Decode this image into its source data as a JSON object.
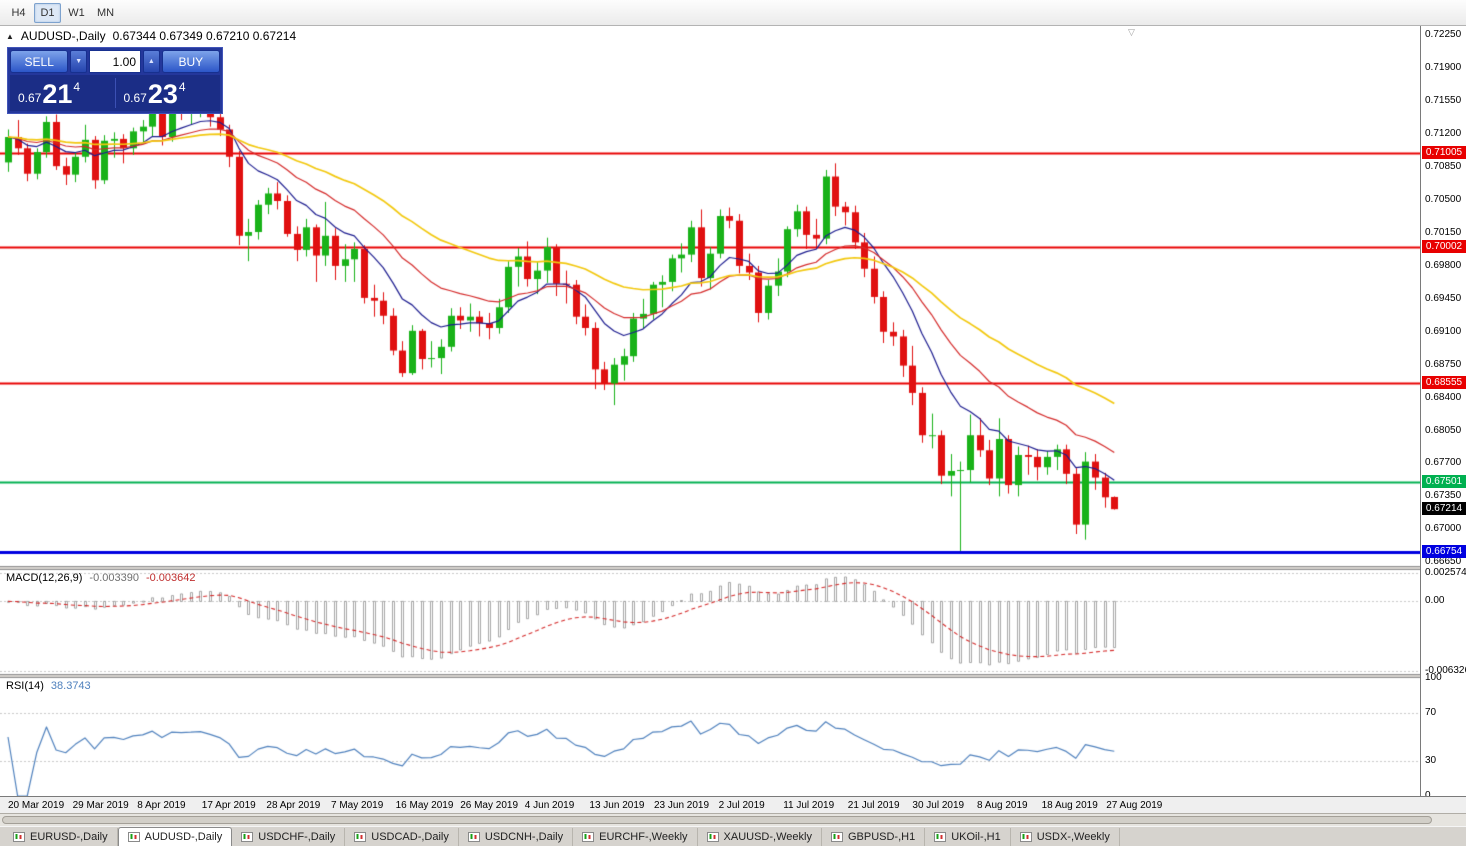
{
  "toolbar": {
    "timeframes": [
      {
        "label": "H4",
        "active": false
      },
      {
        "label": "D1",
        "active": true
      },
      {
        "label": "W1",
        "active": false
      },
      {
        "label": "MN",
        "active": false
      }
    ]
  },
  "chart": {
    "symbol_period": "AUDUSD-,Daily",
    "ohlc": "0.67344 0.67349 0.67210 0.67214"
  },
  "icons": {
    "one_click_toggle": "▲",
    "volume_down": "▼",
    "volume_up": "▲",
    "shift_marker": "▽"
  },
  "trade_panel": {
    "sell_label": "SELL",
    "buy_label": "BUY",
    "volume": "1.00",
    "sell_price": {
      "prefix": "0.67",
      "big": "21",
      "sup": "4"
    },
    "buy_price": {
      "prefix": "0.67",
      "big": "23",
      "sup": "4"
    }
  },
  "chart_data": {
    "type": "candlestick",
    "symbol": "AUDUSD",
    "period": "Daily",
    "ylim": [
      0.6661,
      0.7235
    ],
    "colors": {
      "up": "#19b219",
      "down": "#e01010",
      "ma_fast": "#1c1c8f",
      "ma_mid": "#d42a2a",
      "ma_slow": "#f2c80f",
      "macd_hist": "#909090",
      "macd_signal": "#d42a2a",
      "rsi": "#4f81bd",
      "grid": "#c8c8c8",
      "current_chip": "#000000"
    },
    "price_ticks": [
      {
        "v": 0.7225,
        "label": "0.72250"
      },
      {
        "v": 0.719,
        "label": "0.71900"
      },
      {
        "v": 0.7155,
        "label": "0.71550"
      },
      {
        "v": 0.712,
        "label": "0.71200"
      },
      {
        "v": 0.7085,
        "label": "0.70850"
      },
      {
        "v": 0.705,
        "label": "0.70500"
      },
      {
        "v": 0.7015,
        "label": "0.70150"
      },
      {
        "v": 0.698,
        "label": "0.69800"
      },
      {
        "v": 0.6945,
        "label": "0.69450"
      },
      {
        "v": 0.691,
        "label": "0.69100"
      },
      {
        "v": 0.6875,
        "label": "0.68750"
      },
      {
        "v": 0.684,
        "label": "0.68400"
      },
      {
        "v": 0.6805,
        "label": "0.68050"
      },
      {
        "v": 0.677,
        "label": "0.67700"
      },
      {
        "v": 0.6735,
        "label": "0.67350"
      },
      {
        "v": 0.67,
        "label": "0.67000"
      },
      {
        "v": 0.6665,
        "label": "0.66650"
      }
    ],
    "hlines": [
      {
        "price": 0.71005,
        "label": "0.71005",
        "color": "#e80000",
        "width": 2
      },
      {
        "price": 0.70002,
        "label": "0.70002",
        "color": "#e80000",
        "width": 2
      },
      {
        "price": 0.68555,
        "label": "0.68555",
        "color": "#e80000",
        "width": 2
      },
      {
        "price": 0.67501,
        "label": "0.67501",
        "color": "#00b050",
        "width": 2
      },
      {
        "price": 0.66754,
        "label": "0.66754",
        "color": "#0000e0",
        "width": 3
      }
    ],
    "current_price": {
      "value": 0.67214,
      "label": "0.67214"
    },
    "date_labels": [
      "20 Mar 2019",
      "29 Mar 2019",
      "8 Apr 2019",
      "17 Apr 2019",
      "28 Apr 2019",
      "7 May 2019",
      "16 May 2019",
      "26 May 2019",
      "4 Jun 2019",
      "13 Jun 2019",
      "23 Jun 2019",
      "2 Jul 2019",
      "11 Jul 2019",
      "21 Jul 2019",
      "30 Jul 2019",
      "8 Aug 2019",
      "18 Aug 2019",
      "27 Aug 2019"
    ],
    "moving_averages": [
      {
        "period": 10,
        "color": "#1c1c8f",
        "width": 1.2
      },
      {
        "period": 20,
        "color": "#d42a2a",
        "width": 1.2
      },
      {
        "period": 40,
        "color": "#f2c80f",
        "width": 1.7
      }
    ],
    "candles": [
      [
        0.709,
        0.7125,
        0.708,
        0.7117
      ],
      [
        0.7117,
        0.7135,
        0.7098,
        0.7105
      ],
      [
        0.7105,
        0.711,
        0.707,
        0.7078
      ],
      [
        0.7078,
        0.7105,
        0.7072,
        0.7101
      ],
      [
        0.7101,
        0.7139,
        0.7095,
        0.7133
      ],
      [
        0.7133,
        0.7141,
        0.7082,
        0.7086
      ],
      [
        0.7086,
        0.7095,
        0.7066,
        0.7077
      ],
      [
        0.7077,
        0.71,
        0.7069,
        0.7096
      ],
      [
        0.7096,
        0.713,
        0.709,
        0.7114
      ],
      [
        0.7114,
        0.7118,
        0.7062,
        0.7071
      ],
      [
        0.7071,
        0.7119,
        0.7067,
        0.7113
      ],
      [
        0.7113,
        0.7122,
        0.7095,
        0.7115
      ],
      [
        0.7115,
        0.712,
        0.7089,
        0.7105
      ],
      [
        0.7105,
        0.7127,
        0.7098,
        0.7123
      ],
      [
        0.7123,
        0.7135,
        0.711,
        0.7128
      ],
      [
        0.7128,
        0.7152,
        0.7118,
        0.7148
      ],
      [
        0.7148,
        0.7155,
        0.7108,
        0.7117
      ],
      [
        0.7117,
        0.715,
        0.7112,
        0.7146
      ],
      [
        0.7146,
        0.7152,
        0.7135,
        0.7144
      ],
      [
        0.7144,
        0.7155,
        0.713,
        0.7146
      ],
      [
        0.7146,
        0.7168,
        0.7138,
        0.7149
      ],
      [
        0.7149,
        0.7155,
        0.7128,
        0.7138
      ],
      [
        0.7138,
        0.7146,
        0.7118,
        0.7125
      ],
      [
        0.7125,
        0.713,
        0.7085,
        0.7096
      ],
      [
        0.7096,
        0.7102,
        0.7002,
        0.7012
      ],
      [
        0.7012,
        0.703,
        0.6985,
        0.7016
      ],
      [
        0.7016,
        0.705,
        0.7008,
        0.7045
      ],
      [
        0.7045,
        0.7063,
        0.7035,
        0.7057
      ],
      [
        0.7057,
        0.7069,
        0.704,
        0.7049
      ],
      [
        0.7049,
        0.7055,
        0.7011,
        0.7014
      ],
      [
        0.7014,
        0.7022,
        0.6985,
        0.6997
      ],
      [
        0.6997,
        0.703,
        0.699,
        0.7021
      ],
      [
        0.7021,
        0.7024,
        0.6963,
        0.6991
      ],
      [
        0.6991,
        0.7048,
        0.698,
        0.7012
      ],
      [
        0.7012,
        0.702,
        0.6965,
        0.698
      ],
      [
        0.698,
        0.7003,
        0.6963,
        0.6987
      ],
      [
        0.6987,
        0.7005,
        0.6963,
        0.6998
      ],
      [
        0.6998,
        0.7002,
        0.694,
        0.6946
      ],
      [
        0.6946,
        0.696,
        0.6926,
        0.6943
      ],
      [
        0.6943,
        0.6952,
        0.6918,
        0.6927
      ],
      [
        0.6927,
        0.6935,
        0.6885,
        0.689
      ],
      [
        0.689,
        0.69,
        0.6862,
        0.6866
      ],
      [
        0.6866,
        0.6917,
        0.6864,
        0.6911
      ],
      [
        0.6911,
        0.6913,
        0.687,
        0.6881
      ],
      [
        0.6881,
        0.69,
        0.6872,
        0.6882
      ],
      [
        0.6882,
        0.6902,
        0.6865,
        0.6894
      ],
      [
        0.6894,
        0.6935,
        0.6889,
        0.6927
      ],
      [
        0.6927,
        0.6936,
        0.6913,
        0.6922
      ],
      [
        0.6922,
        0.694,
        0.691,
        0.6926
      ],
      [
        0.6926,
        0.6932,
        0.6905,
        0.6919
      ],
      [
        0.6919,
        0.693,
        0.6902,
        0.6914
      ],
      [
        0.6914,
        0.6945,
        0.6908,
        0.6936
      ],
      [
        0.6936,
        0.6985,
        0.693,
        0.6979
      ],
      [
        0.6979,
        0.6999,
        0.6958,
        0.699
      ],
      [
        0.699,
        0.7006,
        0.6958,
        0.6966
      ],
      [
        0.6966,
        0.6985,
        0.695,
        0.6975
      ],
      [
        0.6975,
        0.701,
        0.6962,
        0.7
      ],
      [
        0.7,
        0.7003,
        0.6948,
        0.6961
      ],
      [
        0.6961,
        0.6975,
        0.694,
        0.696
      ],
      [
        0.696,
        0.6965,
        0.6918,
        0.6926
      ],
      [
        0.6926,
        0.6939,
        0.6906,
        0.6914
      ],
      [
        0.6914,
        0.692,
        0.6849,
        0.687
      ],
      [
        0.687,
        0.6878,
        0.6848,
        0.6855
      ],
      [
        0.6855,
        0.6882,
        0.6832,
        0.6875
      ],
      [
        0.6875,
        0.6892,
        0.6858,
        0.6884
      ],
      [
        0.6884,
        0.693,
        0.6878,
        0.6924
      ],
      [
        0.6924,
        0.6945,
        0.6913,
        0.6929
      ],
      [
        0.6929,
        0.6963,
        0.6923,
        0.696
      ],
      [
        0.696,
        0.697,
        0.6936,
        0.6963
      ],
      [
        0.6963,
        0.6992,
        0.6953,
        0.6988
      ],
      [
        0.6988,
        0.7004,
        0.6973,
        0.6992
      ],
      [
        0.6992,
        0.7028,
        0.6984,
        0.7021
      ],
      [
        0.7021,
        0.704,
        0.6958,
        0.6967
      ],
      [
        0.6967,
        0.7,
        0.6955,
        0.6993
      ],
      [
        0.6993,
        0.704,
        0.6988,
        0.7033
      ],
      [
        0.7033,
        0.7042,
        0.702,
        0.7028
      ],
      [
        0.7028,
        0.7035,
        0.6972,
        0.698
      ],
      [
        0.698,
        0.6993,
        0.6965,
        0.6973
      ],
      [
        0.6973,
        0.698,
        0.692,
        0.693
      ],
      [
        0.693,
        0.6965,
        0.6923,
        0.6959
      ],
      [
        0.6959,
        0.6988,
        0.6948,
        0.6974
      ],
      [
        0.6974,
        0.7022,
        0.6968,
        0.7019
      ],
      [
        0.7019,
        0.7045,
        0.7011,
        0.7038
      ],
      [
        0.7038,
        0.7043,
        0.6998,
        0.7013
      ],
      [
        0.7013,
        0.703,
        0.7,
        0.7009
      ],
      [
        0.7009,
        0.7082,
        0.7003,
        0.7075
      ],
      [
        0.7075,
        0.7089,
        0.7033,
        0.7043
      ],
      [
        0.7043,
        0.7048,
        0.7023,
        0.7037
      ],
      [
        0.7037,
        0.7044,
        0.6998,
        0.7005
      ],
      [
        0.7005,
        0.7015,
        0.6968,
        0.6977
      ],
      [
        0.6977,
        0.699,
        0.694,
        0.6947
      ],
      [
        0.6947,
        0.6953,
        0.6898,
        0.691
      ],
      [
        0.691,
        0.692,
        0.6895,
        0.6905
      ],
      [
        0.6905,
        0.6912,
        0.6862,
        0.6874
      ],
      [
        0.6874,
        0.6895,
        0.6832,
        0.6845
      ],
      [
        0.6845,
        0.6851,
        0.6792,
        0.68
      ],
      [
        0.68,
        0.6823,
        0.6786,
        0.68
      ],
      [
        0.68,
        0.6805,
        0.6748,
        0.6757
      ],
      [
        0.6757,
        0.678,
        0.6735,
        0.6762
      ],
      [
        0.6762,
        0.6772,
        0.6677,
        0.6763
      ],
      [
        0.6763,
        0.6822,
        0.675,
        0.68
      ],
      [
        0.68,
        0.6818,
        0.6777,
        0.6784
      ],
      [
        0.6784,
        0.6795,
        0.6747,
        0.6754
      ],
      [
        0.6754,
        0.6818,
        0.6735,
        0.6796
      ],
      [
        0.6796,
        0.68,
        0.6738,
        0.6747
      ],
      [
        0.6747,
        0.6788,
        0.6735,
        0.6779
      ],
      [
        0.6779,
        0.6789,
        0.6758,
        0.6777
      ],
      [
        0.6777,
        0.6785,
        0.6752,
        0.6766
      ],
      [
        0.6766,
        0.6783,
        0.6758,
        0.6777
      ],
      [
        0.6777,
        0.679,
        0.6763,
        0.6785
      ],
      [
        0.6785,
        0.679,
        0.6748,
        0.6759
      ],
      [
        0.6759,
        0.6765,
        0.6695,
        0.6705
      ],
      [
        0.6705,
        0.6782,
        0.6689,
        0.6772
      ],
      [
        0.6772,
        0.678,
        0.6742,
        0.6755
      ],
      [
        0.6755,
        0.676,
        0.6723,
        0.6734
      ],
      [
        0.67344,
        0.67349,
        0.6721,
        0.67214
      ]
    ],
    "macd": {
      "label": "MACD(12,26,9)",
      "main_value": "-0.003390",
      "signal_value": "-0.003642",
      "params": [
        12,
        26,
        9
      ],
      "ylim": [
        -0.0066,
        0.00285
      ],
      "ticks": [
        {
          "v": 0.002574,
          "label": "0.002574"
        },
        {
          "v": 0,
          "label": "0.00"
        },
        {
          "v": -0.006326,
          "label": "-0.006326"
        }
      ]
    },
    "rsi": {
      "label": "RSI(14)",
      "value_text": "38.3743",
      "period": 14,
      "ylim": [
        0,
        100
      ],
      "levels": [
        70,
        30
      ],
      "ticks": [
        {
          "v": 100,
          "label": "100"
        },
        {
          "v": 70,
          "label": "70"
        },
        {
          "v": 30,
          "label": "30"
        },
        {
          "v": 0,
          "label": "0"
        }
      ]
    }
  },
  "tabs": [
    {
      "label": "EURUSD-,Daily",
      "active": false
    },
    {
      "label": "AUDUSD-,Daily",
      "active": true
    },
    {
      "label": "USDCHF-,Daily",
      "active": false
    },
    {
      "label": "USDCAD-,Daily",
      "active": false
    },
    {
      "label": "USDCNH-,Daily",
      "active": false
    },
    {
      "label": "EURCHF-,Weekly",
      "active": false
    },
    {
      "label": "XAUUSD-,Weekly",
      "active": false
    },
    {
      "label": "GBPUSD-,H1",
      "active": false
    },
    {
      "label": "UKOil-,H1",
      "active": false
    },
    {
      "label": "USDX-,Weekly",
      "active": false
    }
  ]
}
